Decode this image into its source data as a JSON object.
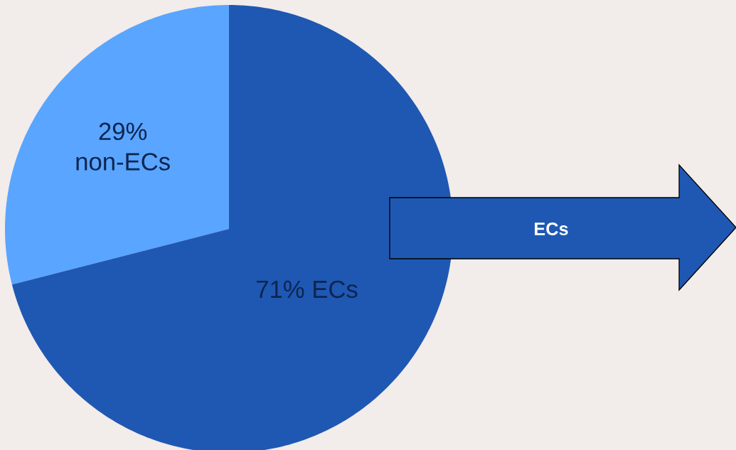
{
  "chart_data": {
    "type": "pie",
    "categories": [
      "non-ECs",
      "ECs"
    ],
    "values": [
      29,
      71
    ],
    "value_labels": [
      "29%",
      "71%"
    ],
    "colors": [
      "#5aa5ff",
      "#1f58b3"
    ],
    "annotations": [
      "ECs"
    ]
  }
}
